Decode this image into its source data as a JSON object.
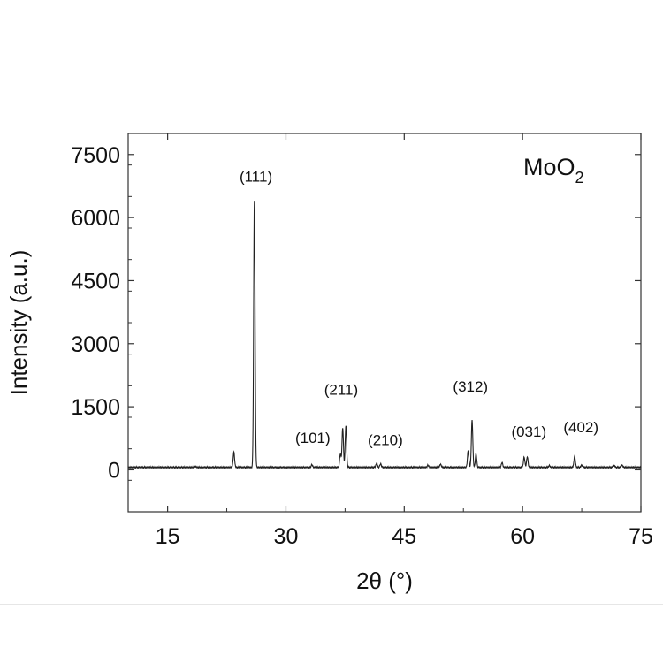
{
  "chart_data": {
    "type": "line",
    "title": "",
    "sample_label": {
      "base": "MoO",
      "subscript": "2"
    },
    "xlabel": "2θ (°)",
    "ylabel": "Intensity (a.u.)",
    "xlim": [
      10,
      75
    ],
    "ylim": [
      -1000,
      8000
    ],
    "x_ticks": [
      15,
      30,
      45,
      60,
      75
    ],
    "y_ticks": [
      0,
      1500,
      3000,
      4500,
      6000,
      7500
    ],
    "x_tick_labels": [
      "15",
      "30",
      "45",
      "60",
      "75"
    ],
    "y_tick_labels": [
      "0",
      "1500",
      "3000",
      "4500",
      "6000",
      "7500"
    ],
    "grid": false,
    "legend": "none",
    "line_color": "#222222",
    "baseline": 60,
    "series": [
      {
        "peaks": [
          {
            "x": 18.5,
            "y": 80
          },
          {
            "x": 23.4,
            "y": 420
          },
          {
            "x": 26.0,
            "y": 6400
          },
          {
            "x": 33.3,
            "y": 120
          },
          {
            "x": 36.9,
            "y": 380
          },
          {
            "x": 37.2,
            "y": 1000
          },
          {
            "x": 37.6,
            "y": 1050
          },
          {
            "x": 41.5,
            "y": 160
          },
          {
            "x": 42.0,
            "y": 140
          },
          {
            "x": 48.0,
            "y": 110
          },
          {
            "x": 49.6,
            "y": 130
          },
          {
            "x": 53.1,
            "y": 450
          },
          {
            "x": 53.6,
            "y": 1180
          },
          {
            "x": 54.1,
            "y": 380
          },
          {
            "x": 57.4,
            "y": 170
          },
          {
            "x": 60.2,
            "y": 300
          },
          {
            "x": 60.6,
            "y": 310
          },
          {
            "x": 63.4,
            "y": 100
          },
          {
            "x": 66.6,
            "y": 320
          },
          {
            "x": 67.5,
            "y": 110
          },
          {
            "x": 71.6,
            "y": 100
          },
          {
            "x": 72.6,
            "y": 110
          }
        ]
      }
    ],
    "annotations": [
      {
        "text": "(111)",
        "x": 26.2,
        "y": 6850
      },
      {
        "text": "(101)",
        "x": 33.4,
        "y": 640
      },
      {
        "text": "(211)",
        "x": 37.0,
        "y": 1790
      },
      {
        "text": "(210)",
        "x": 42.6,
        "y": 590
      },
      {
        "text": "(312)",
        "x": 53.4,
        "y": 1860
      },
      {
        "text": "(031)",
        "x": 60.8,
        "y": 790
      },
      {
        "text": "(402)",
        "x": 67.4,
        "y": 890
      }
    ]
  }
}
